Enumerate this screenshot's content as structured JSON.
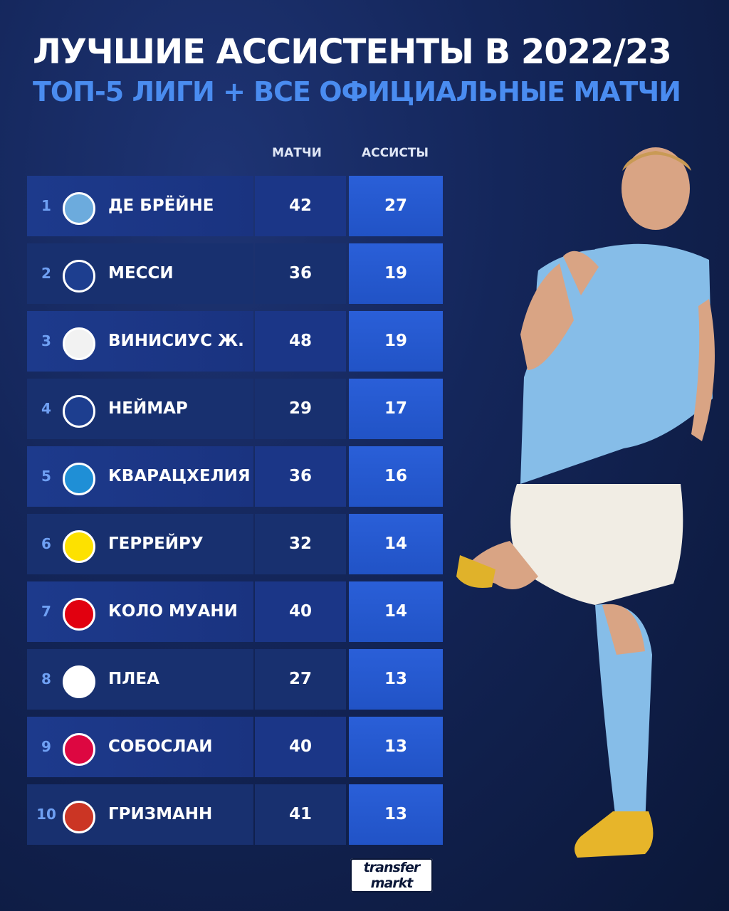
{
  "header": {
    "title": "ЛУЧШИЕ АССИСТЕНТЫ В 2022/23",
    "subtitle": "ТОП-5 ЛИГИ + ВСЕ ОФИЦИАЛЬНЫЕ МАТЧИ"
  },
  "columns": {
    "matches": "МАТЧИ",
    "assists": "АССИСТЫ"
  },
  "rows": [
    {
      "rank": "1",
      "name": "ДЕ БРЁЙНЕ",
      "matches": "42",
      "assists": "27",
      "crest": "man-city-crest",
      "color": "#6cabdd"
    },
    {
      "rank": "2",
      "name": "МЕССИ",
      "matches": "36",
      "assists": "19",
      "crest": "psg-crest",
      "color": "#1d3e8f"
    },
    {
      "rank": "3",
      "name": "ВИНИСИУС Ж.",
      "matches": "48",
      "assists": "19",
      "crest": "real-madrid-crest",
      "color": "#f2f2f2"
    },
    {
      "rank": "4",
      "name": "НЕЙМАР",
      "matches": "29",
      "assists": "17",
      "crest": "psg-crest",
      "color": "#1d3e8f"
    },
    {
      "rank": "5",
      "name": "КВАРАЦХЕЛИЯ",
      "matches": "36",
      "assists": "16",
      "crest": "napoli-crest",
      "color": "#1f8fd6"
    },
    {
      "rank": "6",
      "name": "ГЕРРЕЙРУ",
      "matches": "32",
      "assists": "14",
      "crest": "bvb-crest",
      "color": "#fde100"
    },
    {
      "rank": "7",
      "name": "КОЛО МУАНИ",
      "matches": "40",
      "assists": "14",
      "crest": "eintracht-crest",
      "color": "#e1000f"
    },
    {
      "rank": "8",
      "name": "ПЛЕА",
      "matches": "27",
      "assists": "13",
      "crest": "gladbach-crest",
      "color": "#ffffff"
    },
    {
      "rank": "9",
      "name": "СОБОСЛАИ",
      "matches": "40",
      "assists": "13",
      "crest": "leipzig-crest",
      "color": "#dd0741"
    },
    {
      "rank": "10",
      "name": "ГРИЗМАНН",
      "matches": "41",
      "assists": "13",
      "crest": "atletico-crest",
      "color": "#cb3524"
    }
  ],
  "logo": {
    "line1": "transfer",
    "line2": "markt"
  }
}
